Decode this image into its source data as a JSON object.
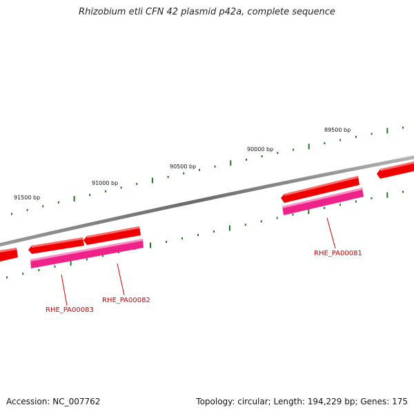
{
  "title": "Rhizobium etli CFN 42 plasmid p42a, complete sequence",
  "footer": {
    "accession": "Accession: NC_007762",
    "summary": "Topology: circular; Length: 194,229 bp; Genes: 175"
  },
  "colors": {
    "backbone": "#808080",
    "tick": "#1a7a1a",
    "gene_forward": "#ee0000",
    "gene_reverse": "#ee2288",
    "gene_label": "#cc0000"
  },
  "scale_labels": [
    "91500 bp",
    "91000 bp",
    "90500 bp",
    "90000 bp",
    "89500 bp"
  ],
  "genes": [
    {
      "label": "RHE_PA00083"
    },
    {
      "label": "RHE_PA00082"
    },
    {
      "label": "RHE_PA00081"
    }
  ]
}
